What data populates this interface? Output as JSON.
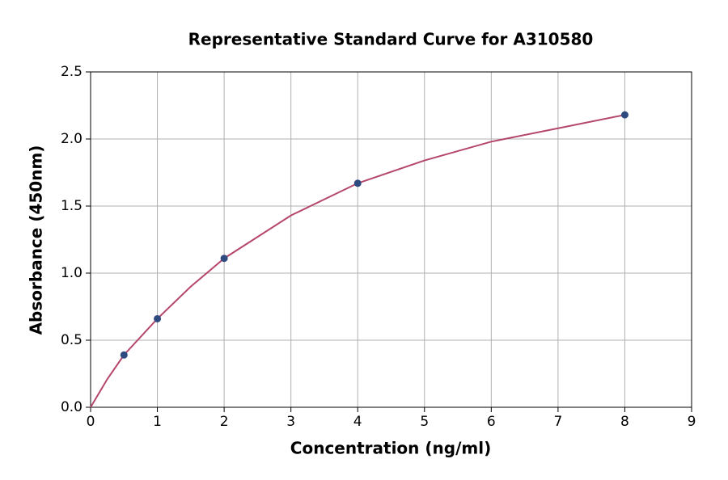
{
  "chart_data": {
    "type": "scatter",
    "title": "Representative Standard Curve for A310580",
    "xlabel": "Concentration (ng/ml)",
    "ylabel": "Absorbance (450nm)",
    "series": [
      {
        "type": "line",
        "color": "#b5476b",
        "x": [
          0,
          0.25,
          0.5,
          1,
          1.5,
          2,
          3,
          4,
          5,
          6,
          7,
          8
        ],
        "values": [
          0,
          0.21,
          0.39,
          0.66,
          0.9,
          1.11,
          1.43,
          1.67,
          1.84,
          1.98,
          2.08,
          2.18
        ]
      },
      {
        "type": "scatter",
        "color": "#2e4a7e",
        "x": [
          0.5,
          1,
          2,
          4,
          8
        ],
        "values": [
          0.39,
          0.66,
          1.11,
          1.67,
          2.18
        ]
      }
    ],
    "xlim": [
      0,
      9
    ],
    "xticks": [
      0,
      1,
      2,
      3,
      4,
      5,
      6,
      7,
      8,
      9
    ],
    "ylim": [
      0,
      2.5
    ],
    "yticks": [
      {
        "value": 0,
        "label": "0.0"
      },
      0.5,
      {
        "value": 1,
        "label": "1.0"
      },
      1.5,
      {
        "value": 2,
        "label": "2.0"
      },
      2.5
    ],
    "grid": true
  }
}
